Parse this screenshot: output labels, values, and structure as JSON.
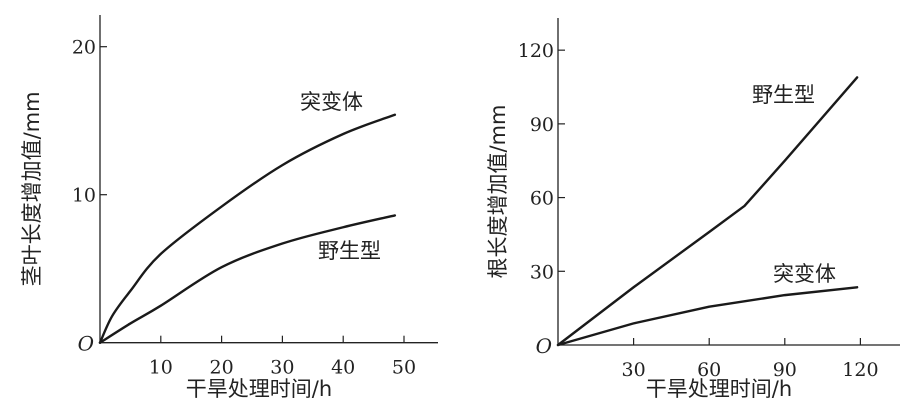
{
  "chart_data": [
    {
      "type": "line",
      "title": "",
      "xlabel": "干旱处理时间/h",
      "ylabel": "茎叶长度增加值/mm",
      "origin_label": "O",
      "xlim": [
        0,
        55
      ],
      "ylim": [
        0,
        22
      ],
      "xticks": [
        10,
        20,
        30,
        40,
        50
      ],
      "yticks": [
        10,
        20
      ],
      "grid": false,
      "series": [
        {
          "name": "突变体",
          "x": [
            0,
            2,
            5,
            10,
            20,
            30,
            40,
            48.5
          ],
          "y": [
            0,
            1.8,
            3.5,
            6.0,
            9.2,
            12.0,
            14.1,
            15.4
          ]
        },
        {
          "name": "野生型",
          "x": [
            0,
            5,
            10,
            20,
            30,
            40,
            48.5
          ],
          "y": [
            0,
            1.3,
            2.5,
            5.1,
            6.7,
            7.8,
            8.6
          ]
        }
      ]
    },
    {
      "type": "line",
      "title": "",
      "xlabel": "干旱处理时间/h",
      "ylabel": "根长度增加值/mm",
      "origin_label": "O",
      "xlim": [
        0,
        135
      ],
      "ylim": [
        0,
        132
      ],
      "xticks": [
        30,
        60,
        90,
        120
      ],
      "yticks": [
        30,
        60,
        90,
        120
      ],
      "grid": false,
      "series": [
        {
          "name": "野生型",
          "x": [
            0,
            30,
            60,
            74,
            90,
            118.7
          ],
          "y": [
            0,
            23.5,
            46,
            56.6,
            75,
            108.9
          ]
        },
        {
          "name": "突变体",
          "x": [
            0,
            30,
            60,
            90,
            118.7
          ],
          "y": [
            0,
            8.8,
            15.6,
            20.3,
            23.5
          ]
        }
      ]
    }
  ]
}
